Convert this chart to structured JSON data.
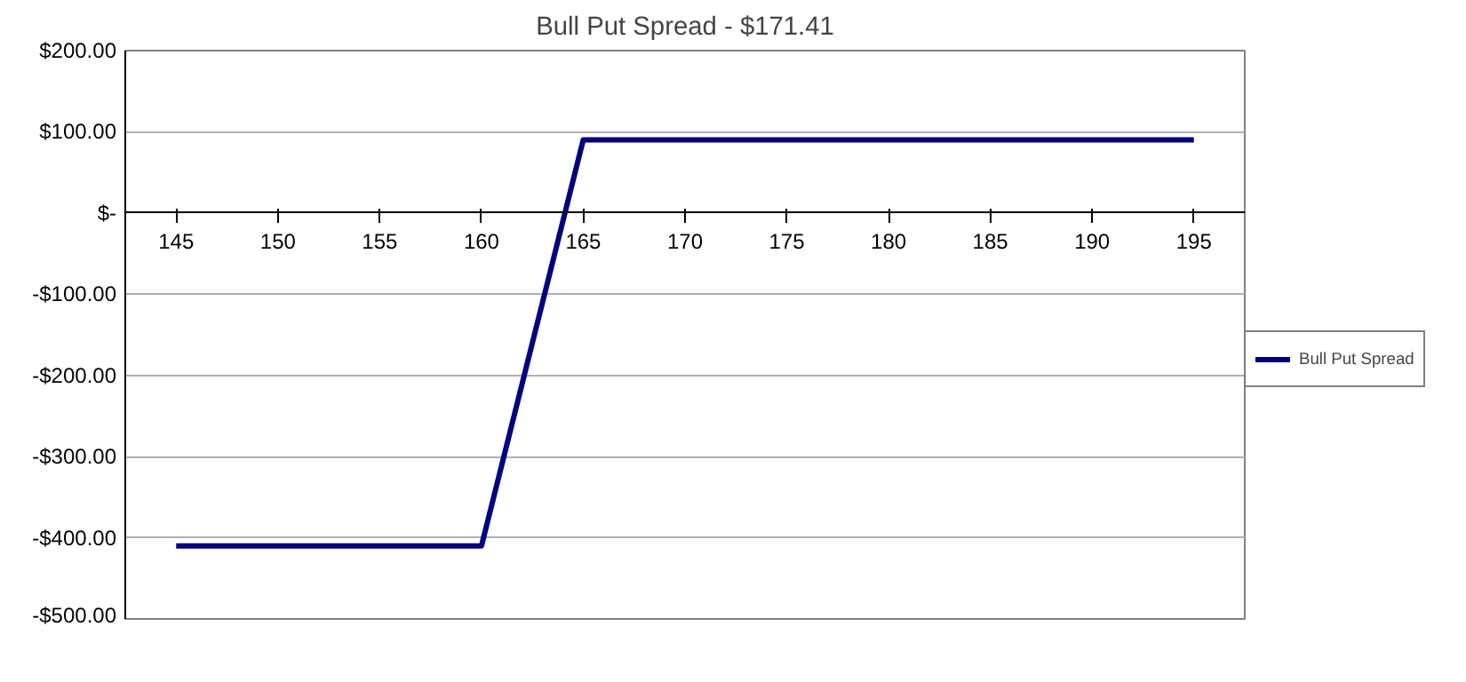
{
  "chart_data": {
    "type": "line",
    "title": "Bull Put Spread - $171.41",
    "categories": [
      "145",
      "150",
      "155",
      "160",
      "165",
      "170",
      "175",
      "180",
      "185",
      "190",
      "195"
    ],
    "series": [
      {
        "name": "Bull Put Spread",
        "color": "#000080",
        "values": [
          -410,
          -410,
          -410,
          -410,
          90,
          90,
          90,
          90,
          90,
          90,
          90
        ]
      }
    ],
    "ylim": [
      -500,
      200
    ],
    "yticks": [
      {
        "value": 200,
        "label": "$200.00"
      },
      {
        "value": 100,
        "label": "$100.00"
      },
      {
        "value": 0,
        "label": "$-"
      },
      {
        "value": -100,
        "label": "-$100.00"
      },
      {
        "value": -200,
        "label": "-$200.00"
      },
      {
        "value": -300,
        "label": "-$300.00"
      },
      {
        "value": -400,
        "label": "-$400.00"
      },
      {
        "value": -500,
        "label": "-$500.00"
      }
    ],
    "grid": "y",
    "legend": "right",
    "marker": "none",
    "line_style": "solid"
  }
}
